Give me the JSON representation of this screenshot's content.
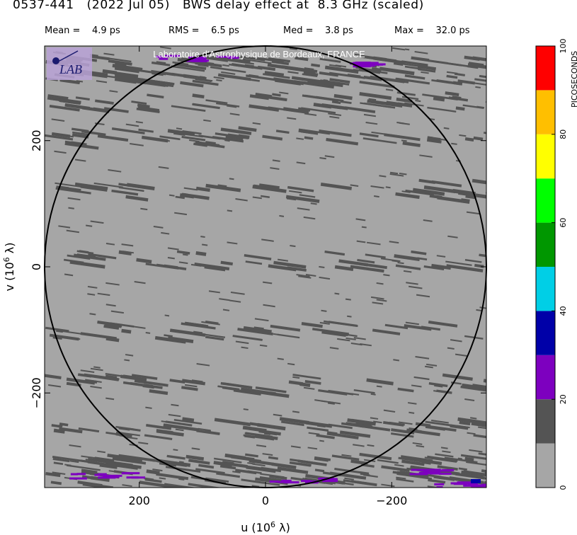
{
  "header": {
    "source": "0537-441",
    "date": "(2022 Jul 05)",
    "title": "BWS delay effect at  8.3 GHz (scaled)"
  },
  "stats": [
    {
      "label": "Mean =",
      "value": "4.9 ps"
    },
    {
      "label": "RMS =",
      "value": "6.5 ps"
    },
    {
      "label": "Med =",
      "value": "3.8 ps"
    },
    {
      "label": "Max =",
      "value": "32.0 ps"
    }
  ],
  "watermark": "Laboratoire d'Astrophysique de Bordeaux, FRANCE",
  "logo_text": "LAB",
  "colors": {
    "background_plot": "#a6a6a6",
    "dark_gray": "#545454",
    "purple": "#7d00bf",
    "blue": "#0000a8",
    "circle": "#000000"
  },
  "chart_data": {
    "type": "heatmap",
    "title": "BWS delay effect at  8.3 GHz (scaled)",
    "xlabel": "u  (10^6 λ)",
    "ylabel": "v  (10^6 λ)",
    "xlim": [
      350,
      -350
    ],
    "ylim": [
      -350,
      350
    ],
    "x_ticks": [
      {
        "value": 200,
        "label": "200"
      },
      {
        "value": 0,
        "label": "0"
      },
      {
        "value": -200,
        "label": "−200"
      }
    ],
    "y_ticks": [
      {
        "value": 200,
        "label": "200"
      },
      {
        "value": 0,
        "label": "0"
      },
      {
        "value": -200,
        "label": "−200"
      }
    ],
    "circle_radius": 350,
    "colorbar": {
      "label": "PICOSECONDS",
      "range": [
        0,
        100
      ],
      "tick_labels": [
        "0",
        "20",
        "40",
        "60",
        "80",
        "100"
      ],
      "tick_values": [
        0,
        20,
        40,
        60,
        80,
        100
      ],
      "bins": [
        {
          "from": 0,
          "to": 10,
          "color": "#a6a6a6"
        },
        {
          "from": 10,
          "to": 20,
          "color": "#545454"
        },
        {
          "from": 20,
          "to": 30,
          "color": "#7d00bf"
        },
        {
          "from": 30,
          "to": 40,
          "color": "#0000a8"
        },
        {
          "from": 40,
          "to": 50,
          "color": "#00cfe6"
        },
        {
          "from": 50,
          "to": 60,
          "color": "#009700"
        },
        {
          "from": 60,
          "to": 70,
          "color": "#00ff00"
        },
        {
          "from": 70,
          "to": 80,
          "color": "#ffff00"
        },
        {
          "from": 80,
          "to": 90,
          "color": "#ffbf00"
        },
        {
          "from": 90,
          "to": 100,
          "color": "#ff0000"
        }
      ]
    },
    "summary": {
      "mean_ps": 4.9,
      "rms_ps": 6.5,
      "median_ps": 3.8,
      "max_ps": 32.0
    }
  }
}
